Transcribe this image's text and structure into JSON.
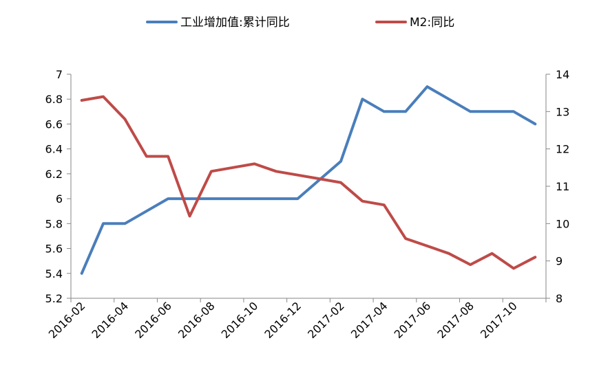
{
  "chart_data": {
    "type": "line",
    "categories": [
      "2016-02",
      "2016-03",
      "2016-04",
      "2016-05",
      "2016-06",
      "2016-07",
      "2016-08",
      "2016-09",
      "2016-10",
      "2016-11",
      "2016-12",
      "2017-01",
      "2017-02",
      "2017-03",
      "2017-04",
      "2017-05",
      "2017-06",
      "2017-07",
      "2017-08",
      "2017-09",
      "2017-10",
      "2017-11"
    ],
    "x_tick_labels": [
      "2016-02",
      "2016-04",
      "2016-06",
      "2016-08",
      "2016-10",
      "2016-12",
      "2017-02",
      "2017-04",
      "2017-06",
      "2017-08",
      "2017-10"
    ],
    "series": [
      {
        "name": "工业增加值:累计同比",
        "axis": "left",
        "color": "#4a7ebb",
        "values": [
          5.4,
          5.8,
          5.8,
          5.9,
          6.0,
          6.0,
          6.0,
          6.0,
          6.0,
          6.0,
          6.0,
          6.15,
          6.3,
          6.8,
          6.7,
          6.7,
          6.9,
          6.8,
          6.7,
          6.7,
          6.7,
          6.6
        ]
      },
      {
        "name": "M2:同比",
        "axis": "right",
        "color": "#be4b48",
        "values": [
          13.3,
          13.4,
          12.8,
          11.8,
          11.8,
          10.2,
          11.4,
          11.5,
          11.6,
          11.4,
          11.3,
          11.2,
          11.1,
          10.6,
          10.5,
          9.6,
          9.4,
          9.2,
          8.9,
          9.2,
          8.8,
          9.1
        ]
      }
    ],
    "y_left": {
      "ylim": [
        5.2,
        7.0
      ],
      "ticks": [
        "5.2",
        "5.4",
        "5.6",
        "5.8",
        "6",
        "6.2",
        "6.4",
        "6.6",
        "6.8",
        "7"
      ]
    },
    "y_right": {
      "ylim": [
        8,
        14
      ],
      "ticks": [
        "8",
        "9",
        "10",
        "11",
        "12",
        "13",
        "14"
      ]
    },
    "legend_position": "top-center",
    "grid": false
  }
}
